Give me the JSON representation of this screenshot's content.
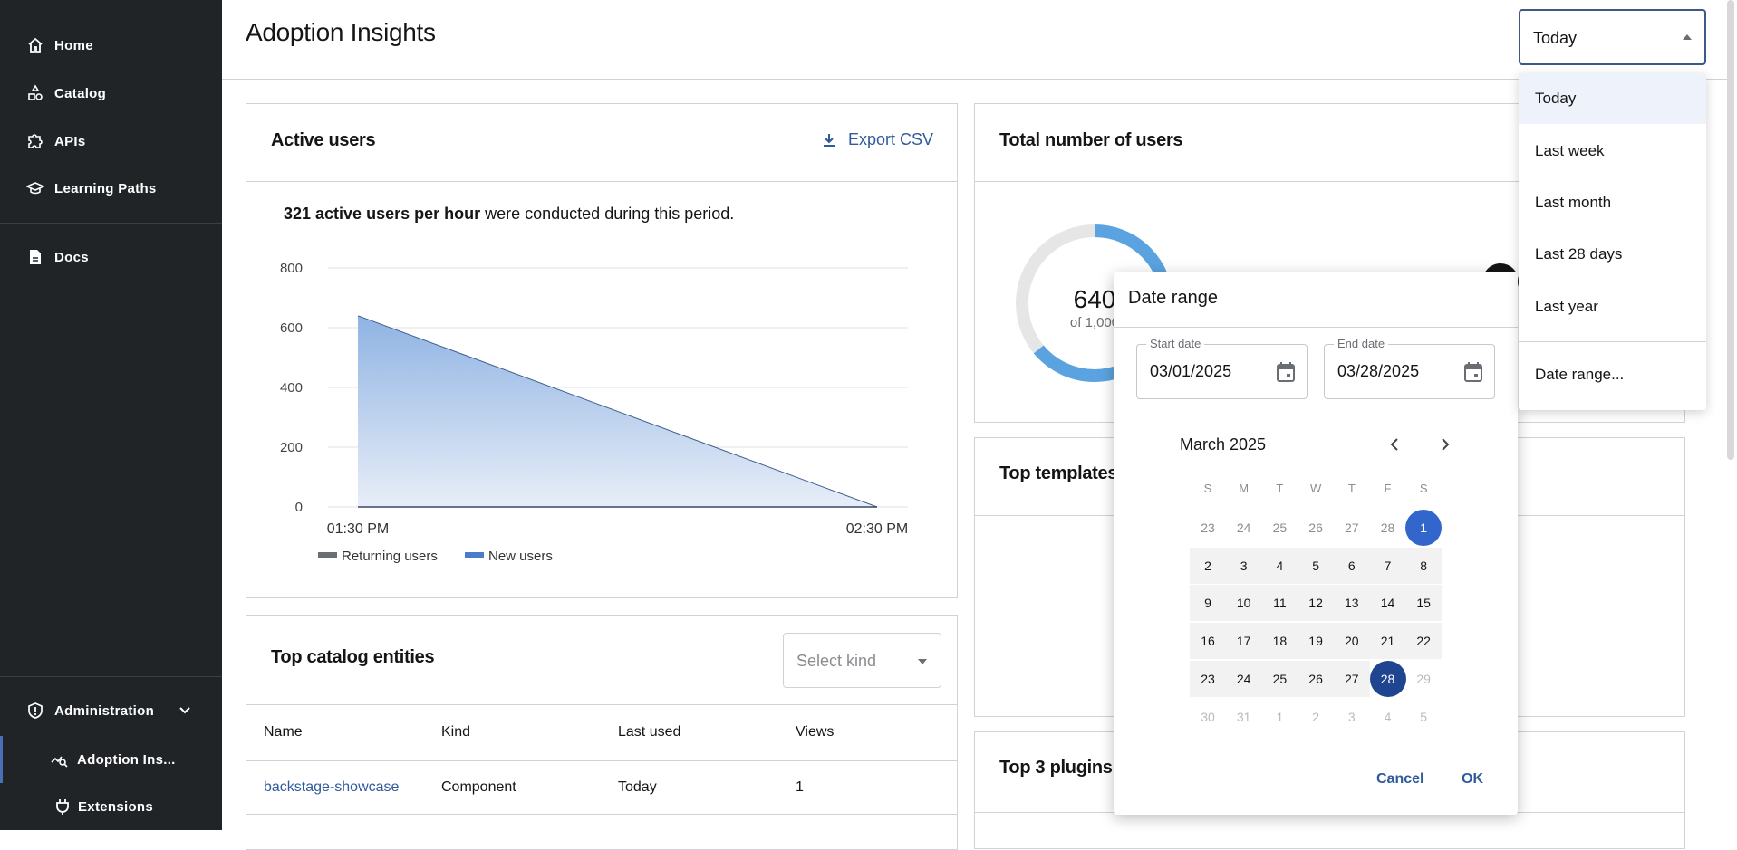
{
  "sidebar": {
    "items": [
      {
        "label": "Home",
        "icon": "home-icon"
      },
      {
        "label": "Catalog",
        "icon": "catalog-icon"
      },
      {
        "label": "APIs",
        "icon": "puzzle-icon"
      },
      {
        "label": "Learning Paths",
        "icon": "graduation-cap-icon"
      },
      {
        "label": "Docs",
        "icon": "document-icon"
      }
    ],
    "admin": {
      "label": "Administration",
      "icon": "shield-icon"
    },
    "sub_items": [
      {
        "label": "Adoption Ins...",
        "icon": "chart-search-icon",
        "active": true
      },
      {
        "label": "Extensions",
        "icon": "plug-icon"
      }
    ],
    "active_color": "#4a6fb6"
  },
  "header": {
    "title": "Adoption Insights",
    "period_select": {
      "value": "Today",
      "options": [
        "Today",
        "Last week",
        "Last month",
        "Last 28 days",
        "Last year",
        "Date range..."
      ],
      "highlighted": "Today"
    }
  },
  "active_users": {
    "title": "Active users",
    "export_label": "Export CSV",
    "summary_bold": "321 active users per hour",
    "summary_rest": " were conducted during this period."
  },
  "chart_data": {
    "type": "area",
    "x": [
      "01:30 PM",
      "02:30 PM"
    ],
    "series": [
      {
        "name": "Returning users",
        "values": [
          0,
          0
        ],
        "color": "#6a6e73"
      },
      {
        "name": "New users",
        "values": [
          640,
          0
        ],
        "color": "#4a7dc9"
      }
    ],
    "yticks": [
      0,
      200,
      400,
      600,
      800
    ],
    "ylim": [
      0,
      800
    ],
    "grid": true,
    "legend": "bottom-left"
  },
  "total_users": {
    "title": "Total number of users",
    "value": "640",
    "of_label": "of 1,000",
    "fraction": 0.64,
    "color": "#5ba3e0"
  },
  "top_templates": {
    "title": "Top templates"
  },
  "top_plugins": {
    "title": "Top 3 plugins"
  },
  "catalog": {
    "title": "Top catalog entities",
    "kind_placeholder": "Select kind",
    "columns": [
      "Name",
      "Kind",
      "Last used",
      "Views"
    ],
    "rows": [
      [
        "backstage-showcase",
        "Component",
        "Today",
        "1"
      ]
    ]
  },
  "date_dialog": {
    "title": "Date range",
    "start_label": "Start date",
    "start_value": "03/01/2025",
    "end_label": "End date",
    "end_value": "03/28/2025",
    "month": "March 2025",
    "weekdays": [
      "S",
      "M",
      "T",
      "W",
      "T",
      "F",
      "S"
    ],
    "weeks": [
      [
        "23",
        "24",
        "25",
        "26",
        "27",
        "28",
        "1"
      ],
      [
        "2",
        "3",
        "4",
        "5",
        "6",
        "7",
        "8"
      ],
      [
        "9",
        "10",
        "11",
        "12",
        "13",
        "14",
        "15"
      ],
      [
        "16",
        "17",
        "18",
        "19",
        "20",
        "21",
        "22"
      ],
      [
        "23",
        "24",
        "25",
        "26",
        "27",
        "28",
        "29"
      ],
      [
        "30",
        "31",
        "1",
        "2",
        "3",
        "4",
        "5"
      ]
    ],
    "range_start": "03/01/2025",
    "range_end": "03/28/2025",
    "cancel_label": "Cancel",
    "ok_label": "OK",
    "start_color": "#3366cc",
    "end_color": "#1f4591"
  }
}
